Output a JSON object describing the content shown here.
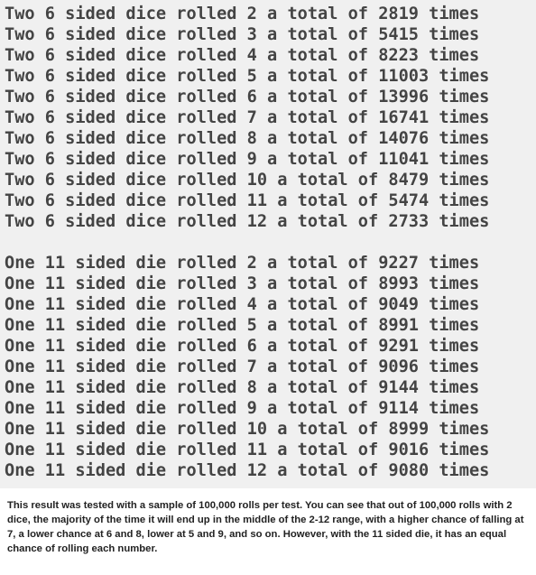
{
  "two_dice": {
    "lines": [
      "Two 6 sided dice rolled 2 a total of 2819 times",
      "Two 6 sided dice rolled 3 a total of 5415 times",
      "Two 6 sided dice rolled 4 a total of 8223 times",
      "Two 6 sided dice rolled 5 a total of 11003 times",
      "Two 6 sided dice rolled 6 a total of 13996 times",
      "Two 6 sided dice rolled 7 a total of 16741 times",
      "Two 6 sided dice rolled 8 a total of 14076 times",
      "Two 6 sided dice rolled 9 a total of 11041 times",
      "Two 6 sided dice rolled 10 a total of 8479 times",
      "Two 6 sided dice rolled 11 a total of 5474 times",
      "Two 6 sided dice rolled 12 a total of 2733 times"
    ]
  },
  "one_die": {
    "lines": [
      "One 11 sided die rolled 2 a total of 9227 times",
      "One 11 sided die rolled 3 a total of 8993 times",
      "One 11 sided die rolled 4 a total of 9049 times",
      "One 11 sided die rolled 5 a total of 8991 times",
      "One 11 sided die rolled 6 a total of 9291 times",
      "One 11 sided die rolled 7 a total of 9096 times",
      "One 11 sided die rolled 8 a total of 9144 times",
      "One 11 sided die rolled 9 a total of 9114 times",
      "One 11 sided die rolled 10 a total of 8999 times",
      "One 11 sided die rolled 11 a total of 9016 times",
      "One 11 sided die rolled 12 a total of 9080 times"
    ]
  },
  "caption": "This result was tested with a sample of 100,000 rolls per test. You can see that out of 100,000 rolls with 2 dice, the majority of the time it will end up in the middle of the 2-12 range, with a higher chance of falling at 7, a lower chance at 6 and 8, lower at 5 and 9, and so on. However, with the 11 sided die, it has an equal chance of rolling each number.",
  "colors": {
    "console_background": "#f0f0f0",
    "console_text": "#444444",
    "caption_text": "#222222"
  }
}
